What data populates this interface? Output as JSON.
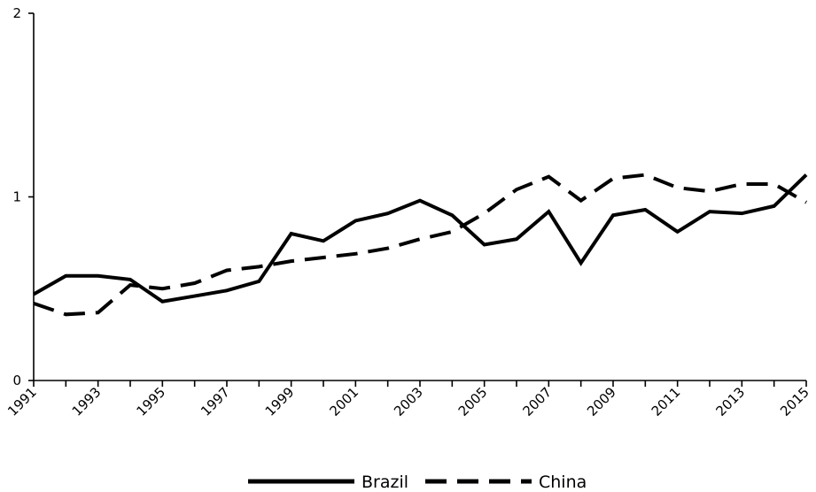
{
  "chart_data": {
    "type": "line",
    "title": "",
    "xlabel": "",
    "ylabel": "",
    "x": [
      1991,
      1992,
      1993,
      1994,
      1995,
      1996,
      1997,
      1998,
      1999,
      2000,
      2001,
      2002,
      2003,
      2004,
      2005,
      2006,
      2007,
      2008,
      2009,
      2010,
      2011,
      2012,
      2013,
      2014,
      2015
    ],
    "xticks": [
      "1991",
      "1993",
      "1995",
      "1997",
      "1999",
      "2001",
      "2003",
      "2005",
      "2007",
      "2009",
      "2011",
      "2013",
      "2015"
    ],
    "yticks": [
      "0",
      "1",
      "2"
    ],
    "xlim": [
      1991,
      2015
    ],
    "ylim": [
      0,
      2
    ],
    "grid": false,
    "legend_position": "bottom-center",
    "series": [
      {
        "name": "Brazil",
        "style": "solid",
        "color": "#000000",
        "values": [
          0.47,
          0.57,
          0.57,
          0.55,
          0.43,
          0.46,
          0.49,
          0.54,
          0.8,
          0.76,
          0.87,
          0.91,
          0.98,
          0.9,
          0.74,
          0.77,
          0.92,
          0.64,
          0.9,
          0.93,
          0.81,
          0.92,
          0.91,
          0.95,
          1.12
        ]
      },
      {
        "name": "China",
        "style": "dashed",
        "color": "#000000",
        "values": [
          0.42,
          0.36,
          0.37,
          0.52,
          0.5,
          0.53,
          0.6,
          0.62,
          0.65,
          0.67,
          0.69,
          0.72,
          0.77,
          0.81,
          0.91,
          1.04,
          1.11,
          0.98,
          1.1,
          1.12,
          1.05,
          1.03,
          1.07,
          1.07,
          0.97
        ]
      }
    ]
  }
}
